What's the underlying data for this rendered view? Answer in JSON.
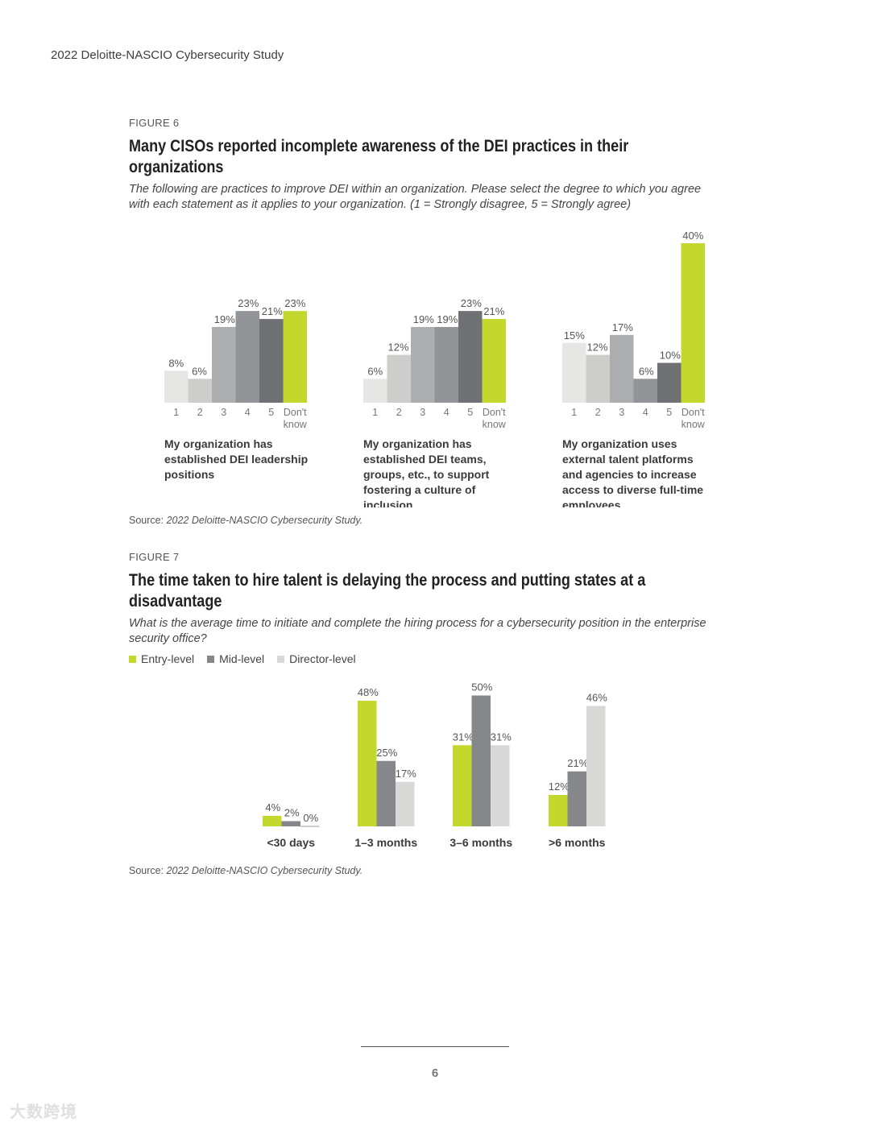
{
  "header": "2022 Deloitte-NASCIO Cybersecurity Study",
  "fig6": {
    "label": "FIGURE 6",
    "title": "Many CISOs reported incomplete awareness of the DEI practices in their organizations",
    "subtitle": "The following are practices to improve DEI within an organization. Please select the degree to which you agree with each statement as it applies to your organization. (1 = Strongly disagree, 5 = Strongly agree)",
    "source_prefix": "Source: ",
    "source": "2022 Deloitte-NASCIO Cybersecurity Study."
  },
  "fig7": {
    "label": "FIGURE 7",
    "title": "The time taken to hire talent is delaying the process and putting states at a disadvantage",
    "subtitle": "What is the average time to initiate and complete the hiring process for a cybersecurity position in the enterprise security office?",
    "source_prefix": "Source: ",
    "source": "2022 Deloitte-NASCIO Cybersecurity Study."
  },
  "page_number": "6",
  "watermark": "大数跨境",
  "colors": {
    "green": "#c3d72d",
    "mid_gray": "#86878b",
    "light_gray": "#d8d8d6",
    "scale_1": "#e6e6e4",
    "scale_2": "#cdcdcb",
    "scale_3": "#acadaf",
    "scale_4": "#939497",
    "scale_5": "#6f7175"
  },
  "chart_data": [
    {
      "type": "bar",
      "categories": [
        "1",
        "2",
        "3",
        "4",
        "5",
        "Don't know"
      ],
      "values": [
        8,
        6,
        19,
        23,
        21,
        23
      ],
      "labels": [
        "8%",
        "6%",
        "19%",
        "23%",
        "21%",
        "23%"
      ],
      "caption": "My organization has established DEI leadership positions",
      "ylim": [
        0,
        40
      ]
    },
    {
      "type": "bar",
      "categories": [
        "1",
        "2",
        "3",
        "4",
        "5",
        "Don't know"
      ],
      "values": [
        6,
        12,
        19,
        19,
        23,
        21
      ],
      "labels": [
        "6%",
        "12%",
        "19%",
        "19%",
        "23%",
        "21%"
      ],
      "caption": "My organization has established DEI teams, groups, etc., to support fostering a culture of inclusion",
      "ylim": [
        0,
        40
      ]
    },
    {
      "type": "bar",
      "categories": [
        "1",
        "2",
        "3",
        "4",
        "5",
        "Don't know"
      ],
      "values": [
        15,
        12,
        17,
        6,
        10,
        40
      ],
      "labels": [
        "15%",
        "12%",
        "17%",
        "6%",
        "10%",
        "40%"
      ],
      "caption": "My organization uses external talent platforms and agencies to increase access to diverse full-time employees",
      "ylim": [
        0,
        40
      ]
    },
    {
      "type": "bar",
      "categories": [
        "<30 days",
        "1–3 months",
        "3–6 months",
        ">6 months"
      ],
      "series": [
        {
          "name": "Entry-level",
          "values": [
            4,
            48,
            31,
            12
          ],
          "labels": [
            "4%",
            "48%",
            "31%",
            "12%"
          ],
          "color": "#c3d72d"
        },
        {
          "name": "Mid-level",
          "values": [
            2,
            25,
            50,
            21
          ],
          "labels": [
            "2%",
            "25%",
            "50%",
            "21%"
          ],
          "color": "#86878b"
        },
        {
          "name": "Director-level",
          "values": [
            0,
            17,
            31,
            46
          ],
          "labels": [
            "0%",
            "17%",
            "31%",
            "46%"
          ],
          "color": "#d8d8d6"
        }
      ],
      "legend": "top-left",
      "ylim": [
        0,
        50
      ]
    }
  ]
}
